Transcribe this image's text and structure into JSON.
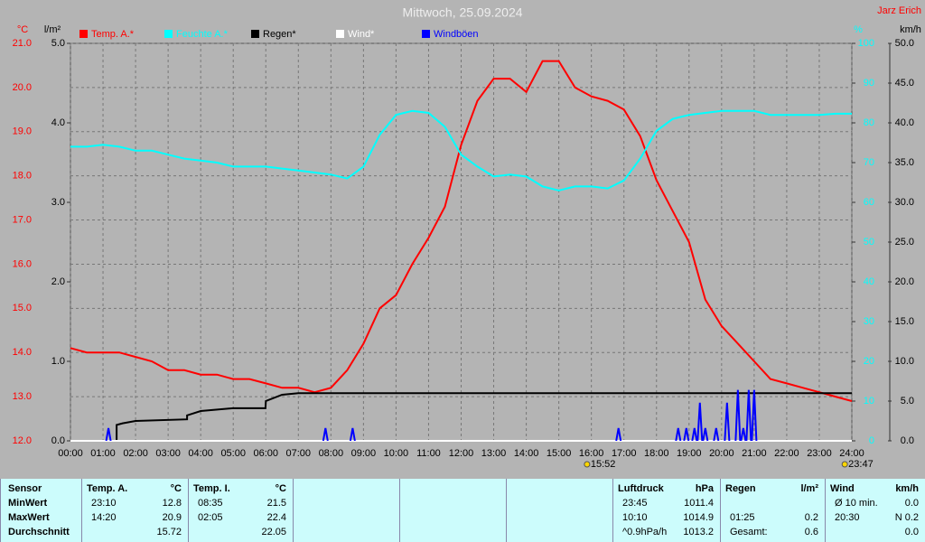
{
  "chart_data": {
    "type": "line",
    "title": "Mittwoch, 25.09.2024",
    "author": "Jarz Erich",
    "y_label": "°C",
    "y2_label": "l/m²",
    "y3_label": "%",
    "y4_label": "km/h",
    "ylim": [
      12,
      21
    ],
    "yticks": [
      {
        "value": 12,
        "label": "12.0"
      },
      {
        "value": 13,
        "label": "13.0"
      },
      {
        "value": 14,
        "label": "14.0"
      },
      {
        "value": 15,
        "label": "15.0"
      },
      {
        "value": 16,
        "label": "16.0"
      },
      {
        "value": 17,
        "label": "17.0"
      },
      {
        "value": 18,
        "label": "18.0"
      },
      {
        "value": 19,
        "label": "19.0"
      },
      {
        "value": 20,
        "label": "20.0"
      },
      {
        "value": 21,
        "label": "21.0"
      }
    ],
    "y2lim": [
      0,
      5
    ],
    "y2ticks": [
      {
        "value": 0,
        "label": "0.0"
      },
      {
        "value": 1,
        "label": "1.0"
      },
      {
        "value": 2,
        "label": "2.0"
      },
      {
        "value": 3,
        "label": "3.0"
      },
      {
        "value": 4,
        "label": "4.0"
      },
      {
        "value": 5,
        "label": "5.0"
      }
    ],
    "y3lim": [
      0,
      100
    ],
    "y3ticks": [
      0,
      10,
      20,
      30,
      40,
      50,
      60,
      70,
      80,
      90,
      100
    ],
    "y4lim": [
      0,
      50
    ],
    "y4ticks": [
      {
        "value": 0,
        "label": "0.0"
      },
      {
        "value": 5,
        "label": "5.0"
      },
      {
        "value": 10,
        "label": "10.0"
      },
      {
        "value": 15,
        "label": "15.0"
      },
      {
        "value": 20,
        "label": "20.0"
      },
      {
        "value": 25,
        "label": "25.0"
      },
      {
        "value": 30,
        "label": "30.0"
      },
      {
        "value": 35,
        "label": "35.0"
      },
      {
        "value": 40,
        "label": "40.0"
      },
      {
        "value": 45,
        "label": "45.0"
      },
      {
        "value": 50,
        "label": "50.0"
      }
    ],
    "xlim": [
      0,
      24
    ],
    "xticks": [
      {
        "value": 0,
        "label": "00:00"
      },
      {
        "value": 1,
        "label": "01:00"
      },
      {
        "value": 2,
        "label": "02:00"
      },
      {
        "value": 3,
        "label": "03:00"
      },
      {
        "value": 4,
        "label": "04:00"
      },
      {
        "value": 5,
        "label": "05:00"
      },
      {
        "value": 6,
        "label": "06:00"
      },
      {
        "value": 7,
        "label": "07:00"
      },
      {
        "value": 8,
        "label": "08:00"
      },
      {
        "value": 9,
        "label": "09:00"
      },
      {
        "value": 10,
        "label": "10:00"
      },
      {
        "value": 11,
        "label": "11:00"
      },
      {
        "value": 12,
        "label": "12:00"
      },
      {
        "value": 13,
        "label": "13:00"
      },
      {
        "value": 14,
        "label": "14:00"
      },
      {
        "value": 15,
        "label": "15:00"
      },
      {
        "value": 16,
        "label": "16:00"
      },
      {
        "value": 17,
        "label": "17:00"
      },
      {
        "value": 18,
        "label": "18:00"
      },
      {
        "value": 19,
        "label": "19:00"
      },
      {
        "value": 20,
        "label": "20:00"
      },
      {
        "value": 21,
        "label": "21:00"
      },
      {
        "value": 22,
        "label": "22:00"
      },
      {
        "value": 23,
        "label": "23:00"
      },
      {
        "value": 24,
        "label": "24:00"
      }
    ],
    "grid": true,
    "annotations": [
      {
        "x": 15.867,
        "label": "15:52"
      },
      {
        "x": 23.783,
        "label": "23:47"
      }
    ],
    "series": [
      {
        "name": "Temp. A.*",
        "color": "#ff0000",
        "axis": "y",
        "style": "line",
        "x": [
          0,
          0.5,
          1,
          1.5,
          2,
          2.5,
          3,
          3.5,
          4,
          4.5,
          5,
          5.5,
          6,
          6.5,
          7,
          7.5,
          8,
          8.5,
          9,
          9.5,
          10,
          10.5,
          11,
          11.5,
          12,
          12.5,
          13,
          13.5,
          14,
          14.5,
          15,
          15.5,
          16,
          16.5,
          17,
          17.5,
          18,
          18.5,
          19,
          19.5,
          20,
          20.5,
          21,
          21.5,
          22,
          22.5,
          23,
          23.5,
          24
        ],
        "values": [
          14.1,
          14.0,
          14.0,
          14.0,
          13.9,
          13.8,
          13.6,
          13.6,
          13.5,
          13.5,
          13.4,
          13.4,
          13.3,
          13.2,
          13.2,
          13.1,
          13.2,
          13.6,
          14.2,
          15.0,
          15.3,
          16.0,
          16.6,
          17.3,
          18.7,
          19.7,
          20.2,
          20.2,
          19.9,
          20.6,
          20.6,
          20.0,
          19.8,
          19.7,
          19.5,
          18.9,
          17.9,
          17.2,
          16.5,
          15.2,
          14.6,
          14.2,
          13.8,
          13.4,
          13.3,
          13.2,
          13.1,
          13.0,
          12.9
        ]
      },
      {
        "name": "Feuchte A.*",
        "color": "#00ffff",
        "axis": "y3",
        "style": "line",
        "x": [
          0,
          0.5,
          1,
          1.5,
          2,
          2.5,
          3,
          3.5,
          4,
          4.5,
          5,
          5.5,
          6,
          6.5,
          7,
          7.5,
          8,
          8.5,
          9,
          9.5,
          10,
          10.5,
          11,
          11.5,
          12,
          12.5,
          13,
          13.5,
          14,
          14.5,
          15,
          15.5,
          16,
          16.5,
          17,
          17.5,
          18,
          18.5,
          19,
          19.5,
          20,
          20.5,
          21,
          21.5,
          22,
          22.5,
          23,
          23.5,
          24
        ],
        "values": [
          74,
          74,
          74.5,
          74,
          73,
          73,
          72,
          71,
          70.5,
          70,
          69,
          69,
          69,
          68.5,
          68,
          67.5,
          67,
          66,
          69,
          77,
          82,
          83,
          82.5,
          79,
          72,
          69,
          66.5,
          67,
          66.5,
          64,
          63,
          64,
          64,
          63.5,
          65.5,
          71,
          78,
          81,
          82,
          82.5,
          83,
          83,
          83,
          82,
          82,
          82,
          82,
          82.3,
          82.3
        ]
      },
      {
        "name": "Regen*",
        "color": "#000000",
        "axis": "y2",
        "style": "line",
        "x": [
          0,
          1.417,
          1.417,
          1.6,
          2,
          3.583,
          3.583,
          4,
          5,
          5.99,
          6,
          6.5,
          7,
          24
        ],
        "values": [
          0,
          0,
          0.2,
          0.22,
          0.25,
          0.27,
          0.32,
          0.375,
          0.41,
          0.41,
          0.5,
          0.58,
          0.6,
          0.6
        ]
      },
      {
        "name": "Wind*",
        "color": "#ffffff",
        "axis": "y4",
        "style": "line",
        "x": [
          0,
          24
        ],
        "values": [
          0,
          0
        ]
      },
      {
        "name": "Windböen",
        "color": "#0000ff",
        "axis": "y4",
        "style": "spikes",
        "x": [
          1.167,
          7.833,
          8.667,
          16.833,
          18.667,
          18.917,
          19.167,
          19.333,
          19.5,
          19.833,
          20.167,
          20.5,
          20.667,
          20.833,
          21.0
        ],
        "values": [
          1.6,
          1.6,
          1.6,
          1.6,
          1.6,
          1.6,
          1.6,
          4.8,
          1.6,
          1.6,
          4.8,
          6.4,
          1.6,
          6.4,
          6.4
        ]
      }
    ]
  },
  "table": {
    "sensor_header": "Sensor",
    "row_labels": [
      "MinWert",
      "MaxWert",
      "Durchschnitt"
    ],
    "groups": [
      {
        "header": "Temp. A.",
        "unit": "°C",
        "rows": [
          {
            "time": "23:10",
            "value": "12.8"
          },
          {
            "time": "14:20",
            "value": "20.9"
          },
          {
            "value": "15.72"
          }
        ]
      },
      {
        "header": "Temp. I.",
        "unit": "°C",
        "rows": [
          {
            "time": "08:35",
            "value": "21.5"
          },
          {
            "time": "02:05",
            "value": "22.4"
          },
          {
            "value": "22.05"
          }
        ]
      },
      {
        "header": "Luftdruck",
        "unit": "hPa",
        "rows": [
          {
            "time": "23:45",
            "value": "1011.4"
          },
          {
            "time": "10:10",
            "value": "1014.9"
          },
          {
            "time": "^0.9hPa/h",
            "value": "1013.2"
          }
        ]
      },
      {
        "header": "Regen",
        "unit": "l/m²",
        "rows": [
          {},
          {
            "time": "01:25",
            "value": "0.2"
          },
          {
            "time": "Gesamt:",
            "value": "0.6"
          }
        ]
      },
      {
        "header": "Wind",
        "unit": "km/h",
        "rows": [
          {
            "time": "Ø 10 min.",
            "value": "0.0"
          },
          {
            "time": "20:30",
            "value": "N 0.2"
          },
          {
            "value": "0.0"
          }
        ]
      }
    ]
  }
}
